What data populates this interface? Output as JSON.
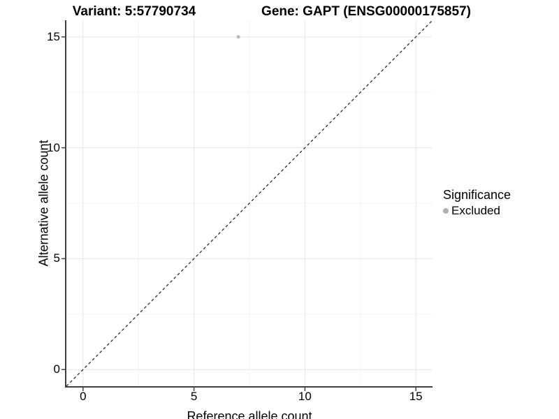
{
  "titles": {
    "variant": "Variant: 5:57790734",
    "gene": "Gene: GAPT (ENSG00000175857)"
  },
  "chart_data": {
    "type": "scatter",
    "xlabel": "Reference allele count",
    "ylabel": "Alternative allele count",
    "xlim": [
      -0.75,
      15.75
    ],
    "ylim": [
      -0.75,
      15.75
    ],
    "x_ticks": [
      0,
      5,
      10,
      15
    ],
    "y_ticks": [
      0,
      5,
      10,
      15
    ],
    "x_minor_ticks": [
      2.5,
      7.5,
      12.5
    ],
    "y_minor_ticks": [
      2.5,
      7.5,
      12.5
    ],
    "grid": "on",
    "points": [
      {
        "x": 7,
        "y": 15,
        "series": "Excluded"
      }
    ],
    "reference_line": {
      "kind": "identity y=x",
      "from": -0.75,
      "to": 15.75,
      "style": "dashed",
      "color": "#1a1a1a"
    },
    "legend": {
      "position": "right",
      "title": "Significance",
      "entries": [
        {
          "label": "Excluded",
          "color": "#b0b0b0"
        }
      ]
    },
    "colors": {
      "point": "#bcbcbc",
      "grid_major": "#e7e7e7",
      "grid_minor": "#f3f3f3",
      "axis_line": "#404040",
      "background": "#ffffff"
    }
  }
}
